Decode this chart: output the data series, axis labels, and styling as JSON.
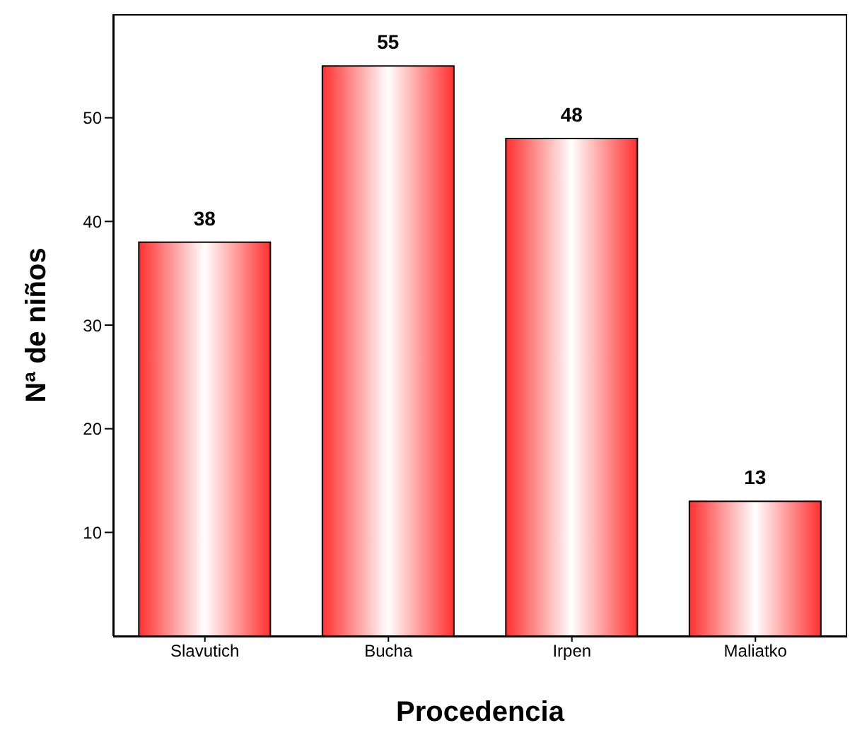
{
  "chart_data": {
    "type": "bar",
    "xlabel": "Procedencia",
    "ylabel": "Nª de niños",
    "categories": [
      "Slavutich",
      "Bucha",
      "Irpen",
      "Maliatko"
    ],
    "values": [
      38,
      55,
      48,
      13
    ],
    "color": "#ff3030",
    "ylim": [
      0,
      60
    ],
    "yticks": [
      10,
      20,
      30,
      40,
      50
    ],
    "grid": false,
    "data_labels": true
  }
}
